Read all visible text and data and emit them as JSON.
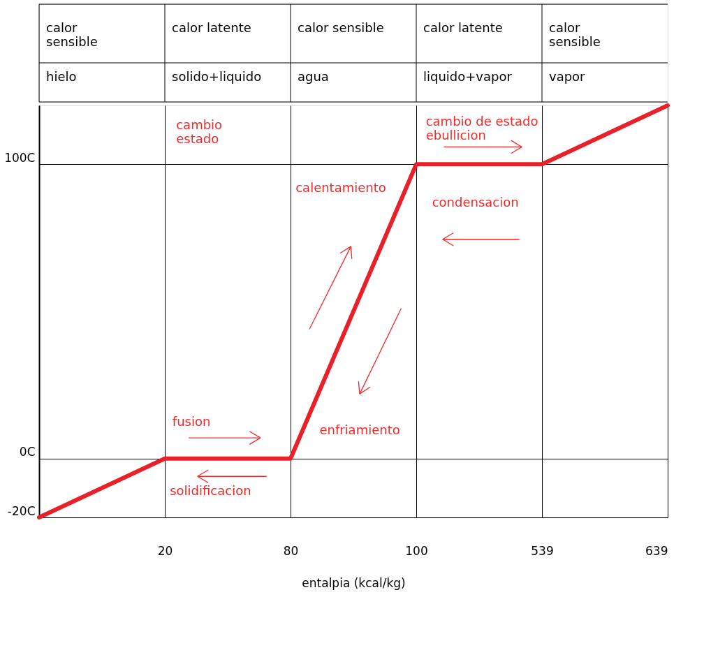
{
  "chart_data": {
    "type": "line",
    "xlabel": "entalpia (kcal/kg)",
    "categories": [
      null,
      "20",
      "80",
      "100",
      "539",
      "639"
    ],
    "series": [
      {
        "color": "#e8202a",
        "values": [
          -20,
          0,
          0,
          100,
          100,
          120
        ]
      }
    ],
    "ylim": [
      -20,
      120
    ],
    "yticks": [
      {
        "value": -20,
        "label": "-20C"
      },
      {
        "value": 0,
        "label": "0C"
      },
      {
        "value": 100,
        "label": "100C"
      }
    ],
    "grid": true,
    "marker": "none",
    "line_style": "solid",
    "annotations": [
      "calor\nsensible",
      "hielo",
      "calor latente",
      "solido+liquido",
      "calor sensible",
      "agua",
      "calor latente",
      "liquido+vapor",
      "calor\nsensible",
      "vapor",
      "cambio\nestado",
      "fusion",
      "solidificacion",
      "calentamiento",
      "enfriamiento",
      "cambio de estado\nebullicion",
      "condensacion"
    ]
  }
}
